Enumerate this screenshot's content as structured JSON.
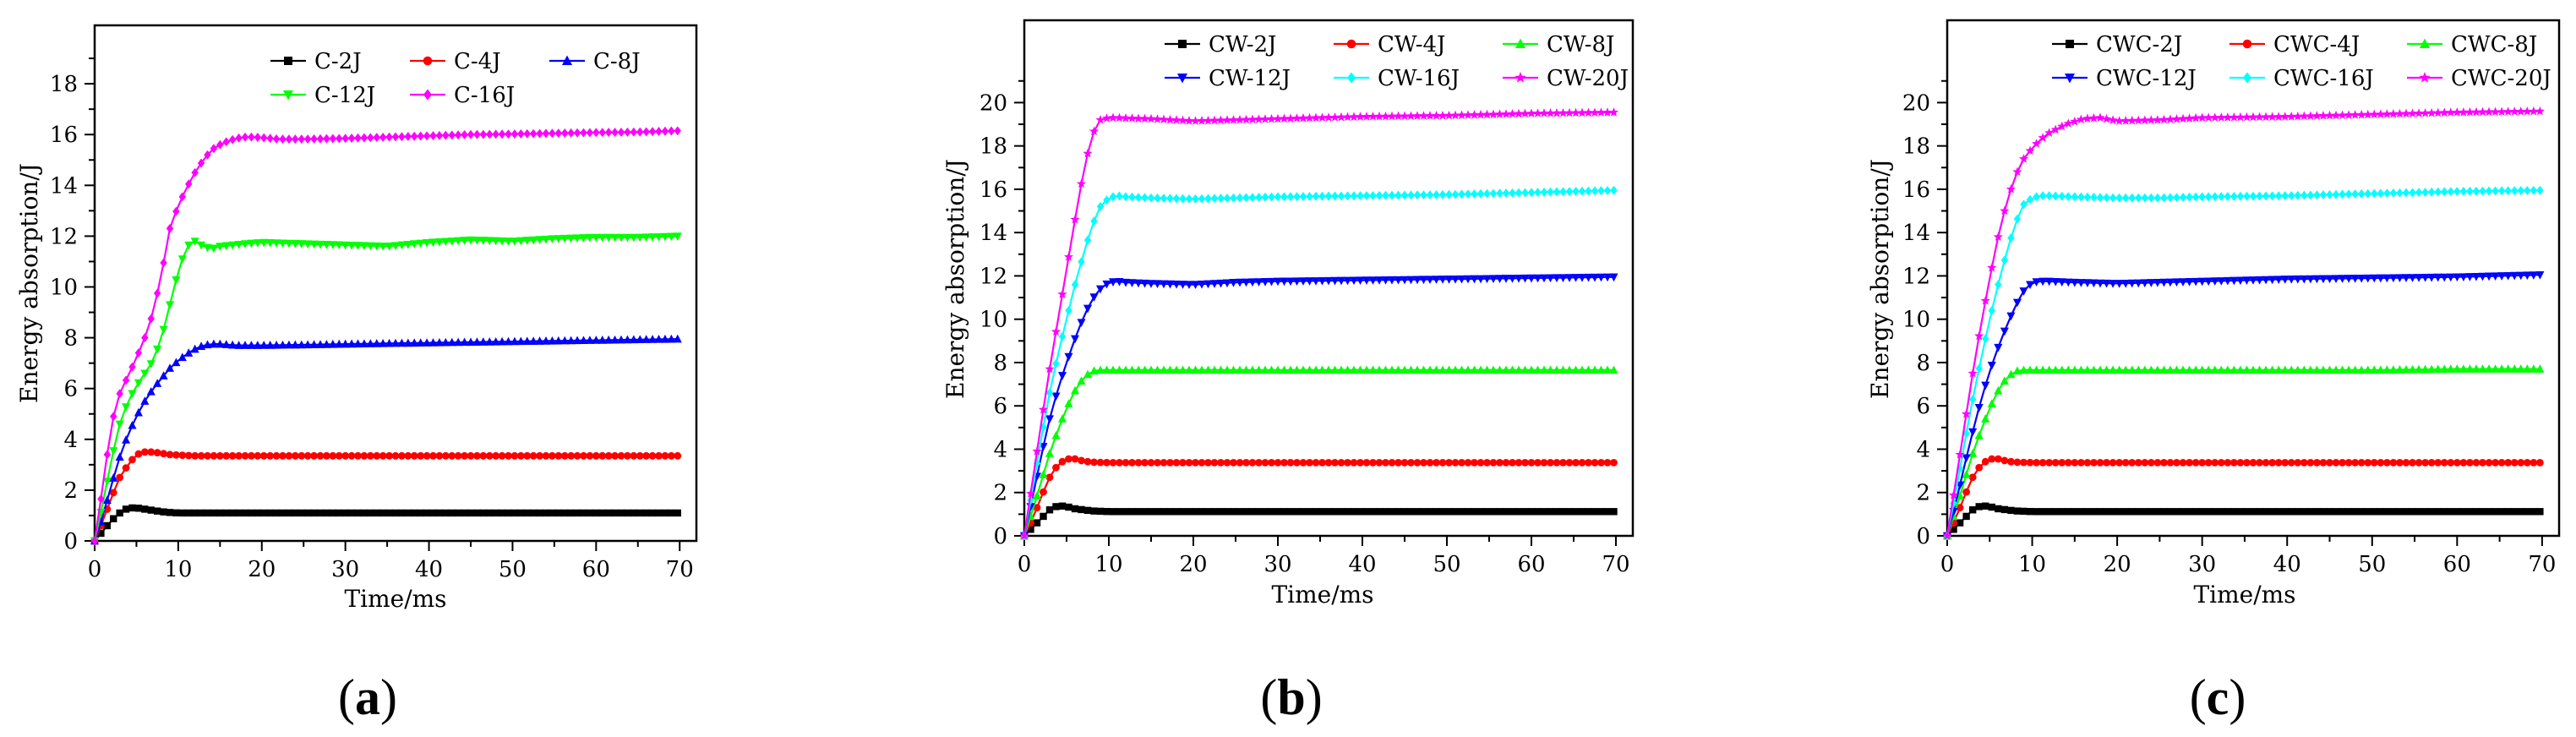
{
  "chart_data": [
    {
      "type": "line",
      "panel": "(a)",
      "panel_letter": "a",
      "xlabel": "Time/ms",
      "ylabel": "Energy absorption/J",
      "xlim": [
        0,
        72
      ],
      "ylim": [
        0,
        20.3
      ],
      "xticks": [
        0,
        10,
        20,
        30,
        40,
        50,
        60,
        70
      ],
      "yticks": [
        0,
        2,
        4,
        6,
        8,
        10,
        12,
        14,
        16,
        18
      ],
      "legend": [
        [
          "C-2J",
          "C-4J",
          "C-8J"
        ],
        [
          "C-12J",
          "C-16J"
        ]
      ],
      "series": [
        {
          "name": "C-2J",
          "color": "#000000",
          "marker": "square",
          "x": [
            0,
            1,
            2,
            3,
            4,
            5,
            6,
            7,
            8,
            9,
            10,
            12,
            15,
            20,
            30,
            40,
            50,
            60,
            70
          ],
          "y": [
            0,
            0.4,
            0.8,
            1.1,
            1.3,
            1.3,
            1.25,
            1.2,
            1.15,
            1.12,
            1.1,
            1.1,
            1.1,
            1.1,
            1.1,
            1.1,
            1.1,
            1.1,
            1.1
          ]
        },
        {
          "name": "C-4J",
          "color": "#ff0000",
          "marker": "circle",
          "x": [
            0,
            1,
            2,
            3,
            4,
            5,
            6,
            7,
            8,
            9,
            10,
            12,
            15,
            20,
            30,
            40,
            50,
            60,
            70
          ],
          "y": [
            0,
            0.8,
            1.7,
            2.5,
            3.0,
            3.4,
            3.5,
            3.5,
            3.45,
            3.4,
            3.38,
            3.35,
            3.35,
            3.35,
            3.35,
            3.35,
            3.35,
            3.35,
            3.35
          ]
        },
        {
          "name": "C-8J",
          "color": "#0000ff",
          "marker": "triangle-up",
          "x": [
            0,
            1,
            2,
            3,
            4,
            5,
            6,
            7,
            8,
            9,
            10,
            11,
            12,
            13,
            14,
            15,
            17,
            20,
            25,
            30,
            40,
            50,
            60,
            70
          ],
          "y": [
            0,
            1.0,
            2.2,
            3.3,
            4.2,
            4.9,
            5.5,
            6.0,
            6.4,
            6.8,
            7.1,
            7.35,
            7.55,
            7.7,
            7.75,
            7.75,
            7.7,
            7.7,
            7.72,
            7.75,
            7.8,
            7.85,
            7.9,
            7.95
          ]
        },
        {
          "name": "C-12J",
          "color": "#00ff00",
          "marker": "triangle-down",
          "x": [
            0,
            1,
            2,
            3,
            4,
            5,
            6,
            7,
            8,
            9,
            10,
            11,
            12,
            13,
            14,
            15,
            18,
            20,
            25,
            30,
            35,
            40,
            45,
            50,
            55,
            60,
            65,
            70
          ],
          "y": [
            0,
            1.5,
            3.2,
            4.6,
            5.5,
            6.1,
            6.6,
            7.1,
            8.0,
            9.3,
            10.6,
            11.6,
            11.8,
            11.6,
            11.5,
            11.6,
            11.7,
            11.75,
            11.7,
            11.65,
            11.6,
            11.75,
            11.85,
            11.8,
            11.9,
            11.95,
            11.95,
            12.0
          ]
        },
        {
          "name": "C-16J",
          "color": "#ff00ff",
          "marker": "diamond",
          "x": [
            0,
            1,
            2,
            3,
            4,
            5,
            6,
            7,
            8,
            9,
            10,
            11,
            12,
            13,
            14,
            15,
            16,
            17,
            18,
            19,
            20,
            22,
            25,
            30,
            35,
            40,
            45,
            50,
            55,
            60,
            65,
            70
          ],
          "y": [
            0,
            2.2,
            4.6,
            5.8,
            6.5,
            7.2,
            8.0,
            9.0,
            10.5,
            12.3,
            13.2,
            13.9,
            14.5,
            15.0,
            15.4,
            15.6,
            15.75,
            15.85,
            15.9,
            15.9,
            15.88,
            15.82,
            15.82,
            15.85,
            15.9,
            15.95,
            16.0,
            16.02,
            16.05,
            16.08,
            16.1,
            16.15
          ]
        }
      ]
    },
    {
      "type": "line",
      "panel": "(b)",
      "panel_letter": "b",
      "xlabel": "Time/ms",
      "ylabel": "Energy absorption/J",
      "xlim": [
        0,
        72
      ],
      "ylim": [
        0,
        23.8
      ],
      "xticks": [
        0,
        10,
        20,
        30,
        40,
        50,
        60,
        70
      ],
      "yticks": [
        0,
        2,
        4,
        6,
        8,
        10,
        12,
        14,
        16,
        18,
        20
      ],
      "legend": [
        [
          "CW-2J",
          "CW-4J",
          "CW-8J"
        ],
        [
          "CW-12J",
          "CW-16J",
          "CW-20J"
        ]
      ],
      "series": [
        {
          "name": "CW-2J",
          "color": "#000000",
          "marker": "square",
          "x": [
            0,
            1,
            2,
            3,
            4,
            5,
            6,
            7,
            8,
            10,
            15,
            20,
            30,
            40,
            50,
            60,
            70
          ],
          "y": [
            0,
            0.4,
            0.8,
            1.2,
            1.4,
            1.35,
            1.25,
            1.2,
            1.15,
            1.12,
            1.12,
            1.12,
            1.12,
            1.12,
            1.12,
            1.12,
            1.12
          ]
        },
        {
          "name": "CW-4J",
          "color": "#ff0000",
          "marker": "circle",
          "x": [
            0,
            1,
            2,
            3,
            4,
            5,
            6,
            7,
            8,
            10,
            15,
            20,
            30,
            40,
            50,
            60,
            70
          ],
          "y": [
            0,
            0.8,
            1.8,
            2.7,
            3.3,
            3.55,
            3.55,
            3.45,
            3.4,
            3.38,
            3.38,
            3.38,
            3.38,
            3.38,
            3.38,
            3.38,
            3.38
          ]
        },
        {
          "name": "CW-8J",
          "color": "#00ff00",
          "marker": "triangle-up",
          "x": [
            0,
            1,
            2,
            3,
            4,
            5,
            6,
            7,
            8,
            9,
            10,
            12,
            15,
            20,
            30,
            40,
            50,
            60,
            70
          ],
          "y": [
            0,
            1.2,
            2.5,
            3.8,
            4.9,
            5.9,
            6.7,
            7.3,
            7.6,
            7.65,
            7.65,
            7.65,
            7.65,
            7.65,
            7.65,
            7.65,
            7.65,
            7.65,
            7.65
          ]
        },
        {
          "name": "CW-12J",
          "color": "#0000ff",
          "marker": "triangle-down",
          "x": [
            0,
            1,
            2,
            3,
            4,
            5,
            6,
            7,
            8,
            9,
            10,
            11,
            12,
            15,
            20,
            25,
            30,
            40,
            50,
            60,
            70
          ],
          "y": [
            0,
            1.8,
            3.7,
            5.4,
            6.8,
            8.0,
            9.1,
            10.1,
            10.9,
            11.4,
            11.7,
            11.75,
            11.7,
            11.65,
            11.6,
            11.7,
            11.75,
            11.8,
            11.85,
            11.9,
            11.95
          ]
        },
        {
          "name": "CW-16J",
          "color": "#00ffff",
          "marker": "diamond",
          "x": [
            0,
            1,
            2,
            3,
            4,
            5,
            6,
            7,
            8,
            9,
            10,
            11,
            12,
            15,
            20,
            25,
            30,
            40,
            50,
            60,
            70
          ],
          "y": [
            0,
            2.2,
            4.5,
            6.6,
            8.4,
            10.0,
            11.6,
            13.0,
            14.3,
            15.2,
            15.6,
            15.7,
            15.65,
            15.6,
            15.55,
            15.6,
            15.65,
            15.7,
            15.75,
            15.85,
            15.95
          ]
        },
        {
          "name": "CW-20J",
          "color": "#ff00ff",
          "marker": "star",
          "x": [
            0,
            1,
            2,
            3,
            4,
            5,
            6,
            7,
            8,
            9,
            10,
            11,
            12,
            15,
            20,
            25,
            30,
            40,
            50,
            60,
            70
          ],
          "y": [
            0,
            2.6,
            5.2,
            7.7,
            10.0,
            12.3,
            14.6,
            16.8,
            18.5,
            19.2,
            19.3,
            19.3,
            19.28,
            19.25,
            19.15,
            19.2,
            19.25,
            19.35,
            19.4,
            19.5,
            19.55
          ]
        }
      ]
    },
    {
      "type": "line",
      "panel": "(c)",
      "panel_letter": "c",
      "xlabel": "Time/ms",
      "ylabel": "Energy absorption/J",
      "xlim": [
        0,
        72
      ],
      "ylim": [
        0,
        23.8
      ],
      "xticks": [
        0,
        10,
        20,
        30,
        40,
        50,
        60,
        70
      ],
      "yticks": [
        0,
        2,
        4,
        6,
        8,
        10,
        12,
        14,
        16,
        18,
        20
      ],
      "legend": [
        [
          "CWC-2J",
          "CWC-4J",
          "CWC-8J"
        ],
        [
          "CWC-12J",
          "CWC-16J",
          "CWC-20J"
        ]
      ],
      "series": [
        {
          "name": "CWC-2J",
          "color": "#000000",
          "marker": "square",
          "x": [
            0,
            1,
            2,
            3,
            4,
            5,
            6,
            7,
            8,
            10,
            15,
            20,
            30,
            40,
            50,
            60,
            70
          ],
          "y": [
            0,
            0.4,
            0.8,
            1.2,
            1.4,
            1.35,
            1.25,
            1.2,
            1.15,
            1.12,
            1.12,
            1.12,
            1.12,
            1.12,
            1.12,
            1.12,
            1.12
          ]
        },
        {
          "name": "CWC-4J",
          "color": "#ff0000",
          "marker": "circle",
          "x": [
            0,
            1,
            2,
            3,
            4,
            5,
            6,
            7,
            8,
            10,
            15,
            20,
            30,
            40,
            50,
            60,
            70
          ],
          "y": [
            0,
            0.8,
            1.8,
            2.7,
            3.3,
            3.55,
            3.55,
            3.45,
            3.4,
            3.38,
            3.38,
            3.38,
            3.38,
            3.38,
            3.38,
            3.38,
            3.38
          ]
        },
        {
          "name": "CWC-8J",
          "color": "#00ff00",
          "marker": "triangle-up",
          "x": [
            0,
            1,
            2,
            3,
            4,
            5,
            6,
            7,
            8,
            9,
            10,
            12,
            15,
            20,
            30,
            40,
            50,
            60,
            70
          ],
          "y": [
            0,
            1.2,
            2.5,
            3.8,
            4.9,
            5.9,
            6.7,
            7.3,
            7.6,
            7.65,
            7.65,
            7.65,
            7.65,
            7.65,
            7.65,
            7.65,
            7.65,
            7.7,
            7.7
          ]
        },
        {
          "name": "CWC-12J",
          "color": "#0000ff",
          "marker": "triangle-down",
          "x": [
            0,
            1,
            2,
            3,
            4,
            5,
            6,
            7,
            8,
            9,
            10,
            11,
            12,
            15,
            20,
            25,
            30,
            40,
            50,
            60,
            70
          ],
          "y": [
            0,
            1.5,
            3.2,
            4.8,
            6.3,
            7.6,
            8.7,
            9.7,
            10.6,
            11.3,
            11.7,
            11.75,
            11.75,
            11.7,
            11.65,
            11.7,
            11.75,
            11.85,
            11.9,
            11.95,
            12.05
          ]
        },
        {
          "name": "CWC-16J",
          "color": "#00ffff",
          "marker": "diamond",
          "x": [
            0,
            1,
            2,
            3,
            4,
            5,
            6,
            7,
            8,
            9,
            10,
            11,
            12,
            15,
            20,
            25,
            30,
            40,
            50,
            60,
            70
          ],
          "y": [
            0,
            2.0,
            4.2,
            6.3,
            8.2,
            10.0,
            11.6,
            13.1,
            14.4,
            15.3,
            15.6,
            15.7,
            15.7,
            15.65,
            15.6,
            15.6,
            15.65,
            15.7,
            15.8,
            15.9,
            15.95
          ]
        },
        {
          "name": "CWC-20J",
          "color": "#ff00ff",
          "marker": "star",
          "x": [
            0,
            1,
            2,
            3,
            4,
            5,
            6,
            7,
            8,
            9,
            10,
            11,
            12,
            14,
            16,
            18,
            20,
            25,
            30,
            40,
            50,
            60,
            70
          ],
          "y": [
            0,
            2.5,
            5.0,
            7.5,
            9.8,
            11.9,
            13.8,
            15.4,
            16.6,
            17.4,
            17.9,
            18.3,
            18.6,
            19.0,
            19.25,
            19.3,
            19.15,
            19.2,
            19.3,
            19.35,
            19.45,
            19.55,
            19.6
          ]
        }
      ]
    }
  ]
}
